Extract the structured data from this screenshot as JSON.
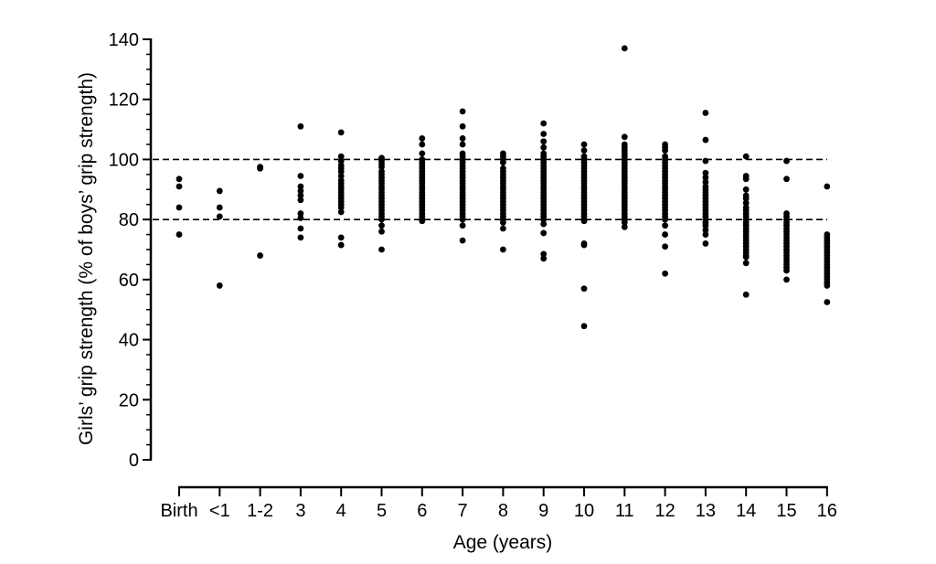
{
  "chart_data": {
    "type": "scatter",
    "title": "",
    "xlabel": "Age (years)",
    "ylabel": "Girls’ grip strength (% of boys’ grip strength)",
    "categories": [
      "Birth",
      "<1",
      "1-2",
      "3",
      "4",
      "5",
      "6",
      "7",
      "8",
      "9",
      "10",
      "11",
      "12",
      "13",
      "14",
      "15",
      "16"
    ],
    "ylim": [
      0,
      140
    ],
    "yticks": [
      "0",
      "20",
      "40",
      "60",
      "80",
      "100",
      "120",
      "140"
    ],
    "reference_lines": [
      80,
      100
    ],
    "grid": false,
    "legend": "none",
    "series": [
      {
        "values": [
          [
            93.5,
            91,
            84,
            75
          ],
          [
            89.5,
            84,
            81,
            58
          ],
          [
            97.5,
            97,
            68
          ],
          [
            111,
            94.5,
            91,
            89.5,
            88,
            86.5,
            82,
            80.5,
            77,
            74
          ],
          [
            109,
            101,
            99.5,
            98,
            97,
            96,
            94.5,
            93,
            92,
            91,
            90,
            89,
            88,
            87,
            86,
            85,
            84,
            82.5,
            74,
            71.5
          ],
          [
            100.5,
            99.5,
            98.5,
            97.5,
            96,
            95,
            94,
            93,
            92,
            91,
            90,
            89,
            88,
            87,
            86,
            85,
            84,
            83,
            82,
            81,
            80,
            78,
            76,
            70
          ],
          [
            107,
            105,
            102,
            100,
            99,
            98,
            97,
            96,
            95,
            94,
            93,
            92,
            91,
            90,
            89,
            88,
            87,
            86,
            85,
            84,
            83,
            82,
            81,
            80,
            79.5
          ],
          [
            116,
            111,
            107,
            105,
            102,
            101,
            100,
            99,
            98,
            97,
            96,
            95,
            94,
            93,
            92,
            91,
            90,
            89,
            88,
            87,
            86,
            85,
            84,
            83,
            82,
            81,
            80,
            78,
            73
          ],
          [
            102,
            101,
            100,
            99,
            97,
            96,
            95,
            94,
            93,
            92,
            91,
            90,
            89,
            88,
            87,
            86,
            85,
            84,
            83,
            82,
            81,
            80,
            79,
            77,
            70
          ],
          [
            112,
            108.5,
            106,
            104,
            102,
            101,
            100,
            99,
            98,
            97,
            96,
            95,
            94,
            93,
            92,
            91,
            90,
            89,
            88,
            87,
            86,
            85,
            84,
            83,
            82,
            81,
            80,
            78.5,
            75.5,
            68.5,
            67
          ],
          [
            105,
            103,
            101,
            100,
            99,
            98,
            97,
            96,
            95,
            94,
            93,
            92,
            91,
            90,
            89,
            88,
            87,
            86,
            85,
            84,
            83,
            82,
            81,
            80,
            79.5,
            72,
            71.5,
            57,
            44.5
          ],
          [
            137,
            107.5,
            105,
            104,
            103,
            102,
            101,
            100,
            99,
            98,
            97,
            96,
            95,
            94,
            93,
            92,
            91,
            90,
            89,
            88,
            87,
            86,
            85,
            84,
            83,
            82,
            81,
            80,
            79,
            77.5
          ],
          [
            105,
            104,
            103,
            101,
            100,
            99,
            98,
            97,
            96,
            95,
            94,
            93,
            92,
            91,
            90,
            89,
            88,
            87,
            86,
            85,
            84,
            83,
            82,
            81,
            80,
            78,
            75,
            71,
            62
          ],
          [
            115.5,
            106.5,
            99.5,
            95.5,
            94,
            92.5,
            91,
            90,
            89,
            88,
            87,
            86,
            85,
            84,
            83,
            82,
            81,
            80,
            79,
            78,
            76.5,
            75,
            72
          ],
          [
            101,
            94.5,
            93.5,
            90,
            88,
            87,
            85.5,
            84,
            83,
            82,
            81,
            80,
            79,
            78,
            77,
            76,
            75,
            74,
            73,
            72,
            71,
            70,
            69,
            68,
            67.5,
            65.5,
            55
          ],
          [
            99.5,
            93.5,
            82,
            81,
            80,
            79,
            78,
            77,
            76,
            75,
            74,
            73,
            72,
            71,
            70,
            69,
            68,
            67,
            66,
            65,
            64,
            63,
            60
          ],
          [
            91,
            75,
            74,
            73,
            72,
            71,
            70,
            69,
            68,
            67,
            66,
            65,
            64,
            63,
            62,
            61,
            60,
            59,
            58,
            52.5
          ]
        ]
      }
    ]
  }
}
